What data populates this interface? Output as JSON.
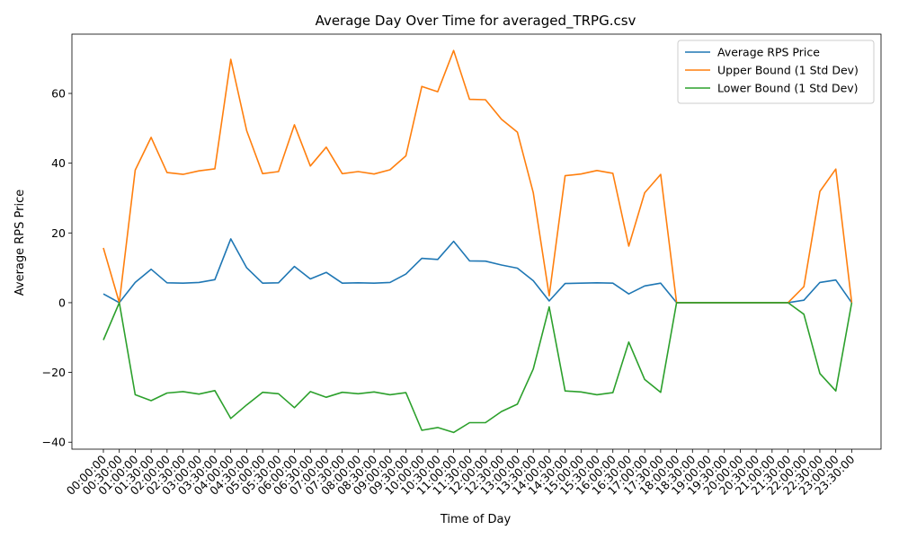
{
  "chart_data": {
    "type": "line",
    "title": "Average Day Over Time for averaged_TRPG.csv",
    "xlabel": "Time of Day",
    "ylabel": "Average RPS Price",
    "ylim": [
      -42,
      77
    ],
    "yticks": [
      -40,
      -20,
      0,
      20,
      40,
      60
    ],
    "grid": false,
    "legend_position": "top-right",
    "categories": [
      "00:00:00",
      "00:30:00",
      "01:00:00",
      "01:30:00",
      "02:00:00",
      "02:30:00",
      "03:00:00",
      "03:30:00",
      "04:00:00",
      "04:30:00",
      "05:00:00",
      "05:30:00",
      "06:00:00",
      "06:30:00",
      "07:00:00",
      "07:30:00",
      "08:00:00",
      "08:30:00",
      "09:00:00",
      "09:30:00",
      "10:00:00",
      "10:30:00",
      "11:00:00",
      "11:30:00",
      "12:00:00",
      "12:30:00",
      "13:00:00",
      "13:30:00",
      "14:00:00",
      "14:30:00",
      "15:00:00",
      "15:30:00",
      "16:00:00",
      "16:30:00",
      "17:00:00",
      "17:30:00",
      "18:00:00",
      "18:30:00",
      "19:00:00",
      "19:30:00",
      "20:00:00",
      "20:30:00",
      "21:00:00",
      "21:30:00",
      "22:00:00",
      "22:30:00",
      "23:00:00",
      "23:30:00"
    ],
    "series": [
      {
        "name": "Average RPS Price",
        "color": "#1f77b4",
        "values": [
          2.5,
          0,
          5.8,
          9.6,
          5.7,
          5.6,
          5.8,
          6.6,
          18.3,
          10.0,
          5.6,
          5.7,
          10.4,
          6.8,
          8.7,
          5.6,
          5.7,
          5.6,
          5.8,
          8.2,
          12.7,
          12.4,
          17.6,
          12.0,
          11.9,
          10.8,
          9.9,
          6.3,
          0.5,
          5.5,
          5.6,
          5.7,
          5.6,
          2.5,
          4.8,
          5.6,
          0,
          0,
          0,
          0,
          0,
          0,
          0,
          0,
          0.7,
          5.8,
          6.5,
          0
        ]
      },
      {
        "name": "Upper Bound (1 Std Dev)",
        "color": "#ff7f0e",
        "values": [
          15.7,
          0,
          38.0,
          47.4,
          37.3,
          36.8,
          37.8,
          38.4,
          69.8,
          49.3,
          37.0,
          37.6,
          51.0,
          39.2,
          44.6,
          37.0,
          37.6,
          36.9,
          38.1,
          42.1,
          62.0,
          60.5,
          72.3,
          58.3,
          58.2,
          52.6,
          48.9,
          31.5,
          2.0,
          36.4,
          36.9,
          37.9,
          37.1,
          16.2,
          31.5,
          36.8,
          0,
          0,
          0,
          0,
          0,
          0,
          0,
          0,
          4.6,
          31.9,
          38.3,
          0
        ]
      },
      {
        "name": "Lower Bound (1 Std Dev)",
        "color": "#2ca02c",
        "values": [
          -10.7,
          0,
          -26.4,
          -28.1,
          -25.9,
          -25.5,
          -26.2,
          -25.2,
          -33.2,
          -29.3,
          -25.7,
          -26.1,
          -30.1,
          -25.5,
          -27.1,
          -25.7,
          -26.1,
          -25.6,
          -26.4,
          -25.8,
          -36.6,
          -35.8,
          -37.2,
          -34.4,
          -34.4,
          -31.2,
          -29.1,
          -19.0,
          -1.2,
          -25.3,
          -25.6,
          -26.4,
          -25.8,
          -11.3,
          -22.0,
          -25.7,
          0,
          0,
          0,
          0,
          0,
          0,
          0,
          0,
          -3.3,
          -20.3,
          -25.3,
          0
        ]
      }
    ]
  }
}
